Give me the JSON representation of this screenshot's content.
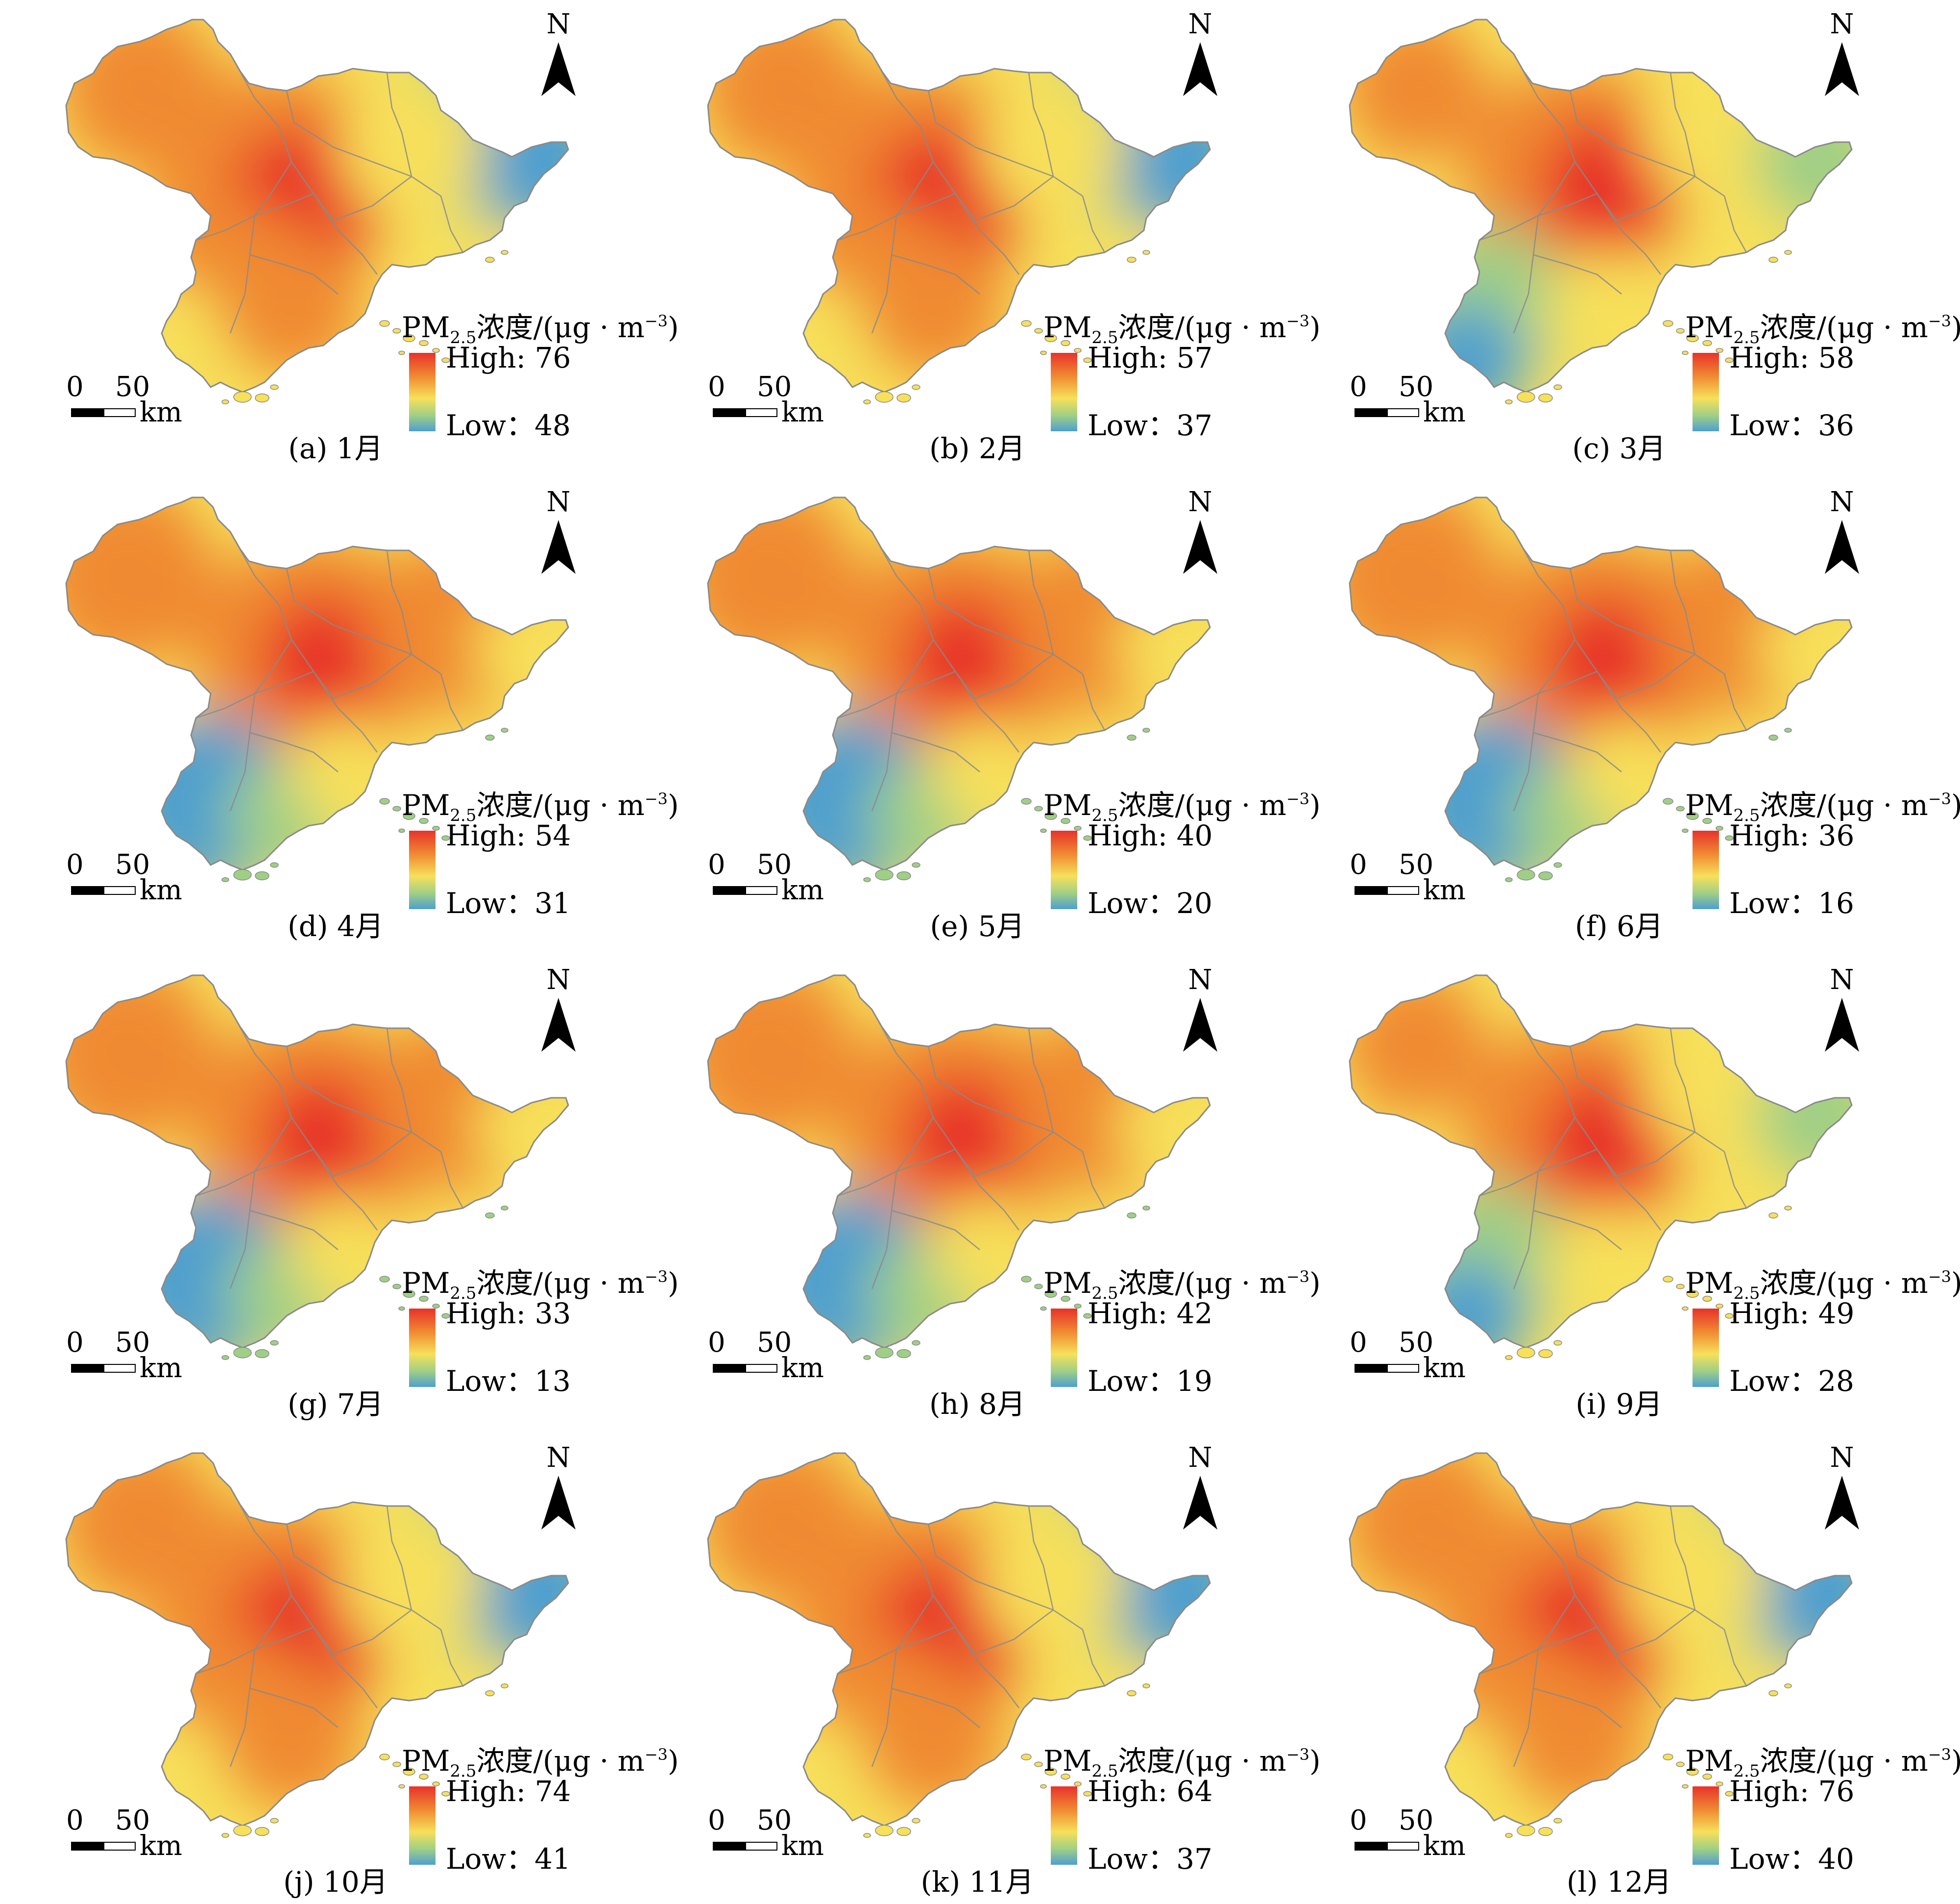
{
  "legend": {
    "title_prefix": "PM",
    "title_sub": "2.5",
    "title_mid": "浓度/(μg · m",
    "title_sup": "−3",
    "title_suffix": ")",
    "high_prefix": "High: ",
    "low_prefix": "Low："
  },
  "north_label": "N",
  "scale_bar": {
    "zero": "0",
    "fifty": "50",
    "unit": "km"
  },
  "colors": {
    "high": "#e8322a",
    "orange": "#f08a32",
    "yellow": "#f7e05a",
    "green": "#9fcf86",
    "low": "#4e9fcf",
    "boundary": "#8a8a8a"
  },
  "panels": [
    {
      "caption_letter": "(a)",
      "caption_month": "1月",
      "high": "76",
      "low": "48",
      "pattern": "winter"
    },
    {
      "caption_letter": "(b)",
      "caption_month": "2月",
      "high": "57",
      "low": "37",
      "pattern": "winter"
    },
    {
      "caption_letter": "(c)",
      "caption_month": "3月",
      "high": "58",
      "low": "36",
      "pattern": "spring"
    },
    {
      "caption_letter": "(d)",
      "caption_month": "4月",
      "high": "54",
      "low": "31",
      "pattern": "summer"
    },
    {
      "caption_letter": "(e)",
      "caption_month": "5月",
      "high": "40",
      "low": "20",
      "pattern": "summer"
    },
    {
      "caption_letter": "(f)",
      "caption_month": "6月",
      "high": "36",
      "low": "16",
      "pattern": "summer"
    },
    {
      "caption_letter": "(g)",
      "caption_month": "7月",
      "high": "33",
      "low": "13",
      "pattern": "summer"
    },
    {
      "caption_letter": "(h)",
      "caption_month": "8月",
      "high": "42",
      "low": "19",
      "pattern": "summer"
    },
    {
      "caption_letter": "(i)",
      "caption_month": "9月",
      "high": "49",
      "low": "28",
      "pattern": "spring"
    },
    {
      "caption_letter": "(j)",
      "caption_month": "10月",
      "high": "74",
      "low": "41",
      "pattern": "winter"
    },
    {
      "caption_letter": "(k)",
      "caption_month": "11月",
      "high": "64",
      "low": "37",
      "pattern": "winter"
    },
    {
      "caption_letter": "(l)",
      "caption_month": "12月",
      "high": "76",
      "low": "40",
      "pattern": "winter"
    }
  ]
}
